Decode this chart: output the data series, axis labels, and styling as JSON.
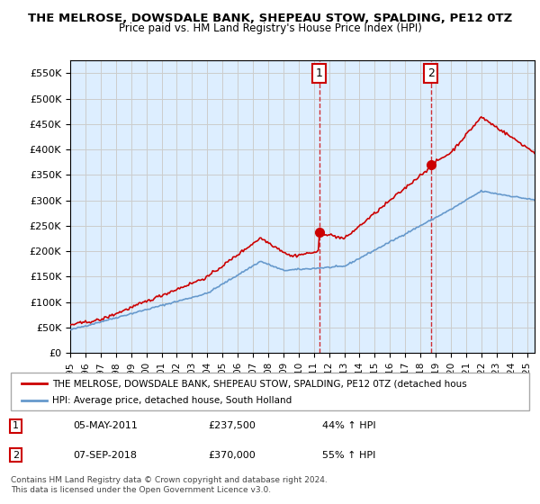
{
  "title": "THE MELROSE, DOWSDALE BANK, SHEPEAU STOW, SPALDING, PE12 0TZ",
  "subtitle": "Price paid vs. HM Land Registry's House Price Index (HPI)",
  "ylabel": "",
  "ylim": [
    0,
    575000
  ],
  "yticks": [
    0,
    50000,
    100000,
    150000,
    200000,
    250000,
    300000,
    350000,
    400000,
    450000,
    500000,
    550000
  ],
  "ytick_labels": [
    "£0",
    "£50K",
    "£100K",
    "£150K",
    "£200K",
    "£250K",
    "£300K",
    "£350K",
    "£400K",
    "£450K",
    "£500K",
    "£550K"
  ],
  "sale1_date": 2011.35,
  "sale1_price": 237500,
  "sale1_label": "1",
  "sale2_date": 2018.68,
  "sale2_price": 370000,
  "sale2_label": "2",
  "legend_red": "THE MELROSE, DOWSDALE BANK, SHEPEAU STOW, SPALDING, PE12 0TZ (detached hous",
  "legend_blue": "HPI: Average price, detached house, South Holland",
  "table_row1": [
    "1",
    "05-MAY-2011",
    "£237,500",
    "44% ↑ HPI"
  ],
  "table_row2": [
    "2",
    "07-SEP-2018",
    "£370,000",
    "55% ↑ HPI"
  ],
  "footer": "Contains HM Land Registry data © Crown copyright and database right 2024.\nThis data is licensed under the Open Government Licence v3.0.",
  "red_color": "#cc0000",
  "blue_color": "#6699cc",
  "grid_color": "#cccccc",
  "bg_color": "#ddeeff",
  "plot_bg": "#ddeeff"
}
